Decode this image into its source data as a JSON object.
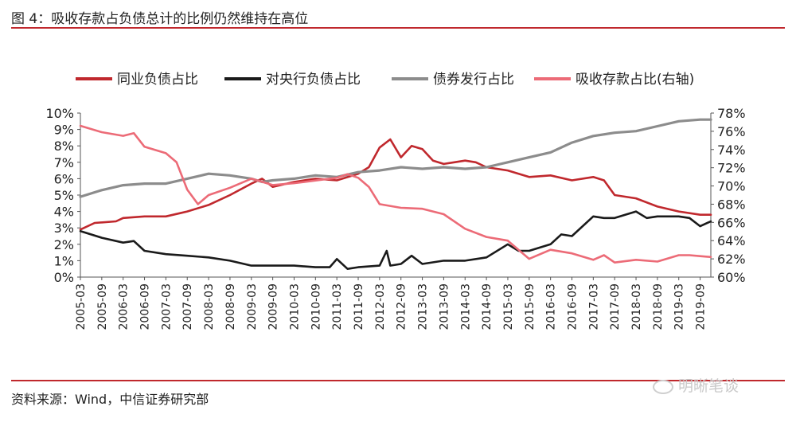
{
  "title": "图 4：吸收存款占负债总计的比例仍然维持在高位",
  "source": "资料来源：Wind，中信证券研究部",
  "watermark": "明晰笔谈",
  "chart_data": {
    "type": "line",
    "x_start": "2005-03",
    "x_end": "2019-12",
    "xtick_labels": [
      "2005-03",
      "2005-09",
      "2006-03",
      "2006-09",
      "2007-03",
      "2007-09",
      "2008-03",
      "2008-09",
      "2009-03",
      "2009-09",
      "2010-03",
      "2010-09",
      "2011-03",
      "2011-09",
      "2012-03",
      "2012-09",
      "2013-03",
      "2013-09",
      "2014-03",
      "2014-09",
      "2015-03",
      "2015-09",
      "2016-03",
      "2016-09",
      "2017-03",
      "2017-09",
      "2018-03",
      "2018-09",
      "2019-03",
      "2019-09"
    ],
    "y_left": {
      "lim": [
        0,
        10
      ],
      "ticks": [
        "0%",
        "1%",
        "2%",
        "3%",
        "4%",
        "5%",
        "6%",
        "7%",
        "8%",
        "9%",
        "10%"
      ]
    },
    "y_right": {
      "lim": [
        60,
        78
      ],
      "ticks": [
        "60%",
        "62%",
        "64%",
        "66%",
        "68%",
        "70%",
        "72%",
        "74%",
        "76%",
        "78%"
      ]
    },
    "series": [
      {
        "name": "同业负债占比",
        "axis": "left",
        "color": "#c0282d",
        "points": [
          [
            "2005-03",
            2.9
          ],
          [
            "2005-07",
            3.3
          ],
          [
            "2006-01",
            3.4
          ],
          [
            "2006-03",
            3.6
          ],
          [
            "2006-09",
            3.7
          ],
          [
            "2007-03",
            3.7
          ],
          [
            "2007-07",
            3.9
          ],
          [
            "2007-09",
            4.0
          ],
          [
            "2008-03",
            4.4
          ],
          [
            "2008-09",
            5.0
          ],
          [
            "2009-03",
            5.7
          ],
          [
            "2009-06",
            6.0
          ],
          [
            "2009-09",
            5.5
          ],
          [
            "2010-03",
            5.8
          ],
          [
            "2010-09",
            6.0
          ],
          [
            "2011-03",
            5.9
          ],
          [
            "2011-09",
            6.3
          ],
          [
            "2011-12",
            6.7
          ],
          [
            "2012-03",
            7.9
          ],
          [
            "2012-06",
            8.4
          ],
          [
            "2012-09",
            7.3
          ],
          [
            "2012-12",
            8.0
          ],
          [
            "2013-03",
            7.8
          ],
          [
            "2013-06",
            7.1
          ],
          [
            "2013-09",
            6.9
          ],
          [
            "2013-12",
            7.0
          ],
          [
            "2014-03",
            7.1
          ],
          [
            "2014-06",
            7.0
          ],
          [
            "2014-09",
            6.7
          ],
          [
            "2015-03",
            6.5
          ],
          [
            "2015-09",
            6.1
          ],
          [
            "2016-03",
            6.2
          ],
          [
            "2016-09",
            5.9
          ],
          [
            "2017-03",
            6.1
          ],
          [
            "2017-06",
            5.9
          ],
          [
            "2017-09",
            5.0
          ],
          [
            "2018-03",
            4.8
          ],
          [
            "2018-09",
            4.3
          ],
          [
            "2019-03",
            4.0
          ],
          [
            "2019-09",
            3.8
          ],
          [
            "2019-12",
            3.8
          ]
        ]
      },
      {
        "name": "对央行负债占比",
        "axis": "left",
        "color": "#1a1a1a",
        "points": [
          [
            "2005-03",
            2.8
          ],
          [
            "2005-09",
            2.4
          ],
          [
            "2006-03",
            2.1
          ],
          [
            "2006-06",
            2.2
          ],
          [
            "2006-09",
            1.6
          ],
          [
            "2007-03",
            1.4
          ],
          [
            "2007-09",
            1.3
          ],
          [
            "2008-03",
            1.2
          ],
          [
            "2008-09",
            1.0
          ],
          [
            "2009-03",
            0.7
          ],
          [
            "2009-09",
            0.7
          ],
          [
            "2010-03",
            0.7
          ],
          [
            "2010-09",
            0.6
          ],
          [
            "2011-01",
            0.6
          ],
          [
            "2011-03",
            1.1
          ],
          [
            "2011-06",
            0.5
          ],
          [
            "2011-09",
            0.6
          ],
          [
            "2012-03",
            0.7
          ],
          [
            "2012-05",
            1.6
          ],
          [
            "2012-06",
            0.7
          ],
          [
            "2012-09",
            0.8
          ],
          [
            "2012-12",
            1.3
          ],
          [
            "2013-03",
            0.8
          ],
          [
            "2013-09",
            1.0
          ],
          [
            "2014-03",
            1.0
          ],
          [
            "2014-09",
            1.2
          ],
          [
            "2015-03",
            2.0
          ],
          [
            "2015-06",
            1.6
          ],
          [
            "2015-09",
            1.6
          ],
          [
            "2016-03",
            2.0
          ],
          [
            "2016-06",
            2.6
          ],
          [
            "2016-09",
            2.5
          ],
          [
            "2017-03",
            3.7
          ],
          [
            "2017-06",
            3.6
          ],
          [
            "2017-09",
            3.6
          ],
          [
            "2018-03",
            4.0
          ],
          [
            "2018-06",
            3.6
          ],
          [
            "2018-09",
            3.7
          ],
          [
            "2019-03",
            3.7
          ],
          [
            "2019-06",
            3.6
          ],
          [
            "2019-09",
            3.1
          ],
          [
            "2019-12",
            3.4
          ]
        ]
      },
      {
        "name": "债券发行占比",
        "axis": "left",
        "color": "#8c8c8c",
        "points": [
          [
            "2005-03",
            4.9
          ],
          [
            "2005-09",
            5.3
          ],
          [
            "2006-03",
            5.6
          ],
          [
            "2006-09",
            5.7
          ],
          [
            "2007-03",
            5.7
          ],
          [
            "2007-09",
            6.0
          ],
          [
            "2008-03",
            6.3
          ],
          [
            "2008-09",
            6.2
          ],
          [
            "2009-03",
            6.0
          ],
          [
            "2009-06",
            5.8
          ],
          [
            "2009-09",
            5.9
          ],
          [
            "2010-03",
            6.0
          ],
          [
            "2010-09",
            6.2
          ],
          [
            "2011-03",
            6.1
          ],
          [
            "2011-09",
            6.4
          ],
          [
            "2012-03",
            6.5
          ],
          [
            "2012-09",
            6.7
          ],
          [
            "2013-03",
            6.6
          ],
          [
            "2013-09",
            6.7
          ],
          [
            "2014-03",
            6.6
          ],
          [
            "2014-09",
            6.7
          ],
          [
            "2015-03",
            7.0
          ],
          [
            "2015-09",
            7.3
          ],
          [
            "2016-03",
            7.6
          ],
          [
            "2016-09",
            8.2
          ],
          [
            "2017-03",
            8.6
          ],
          [
            "2017-09",
            8.8
          ],
          [
            "2018-03",
            8.9
          ],
          [
            "2018-09",
            9.2
          ],
          [
            "2019-03",
            9.5
          ],
          [
            "2019-09",
            9.6
          ],
          [
            "2019-12",
            9.6
          ]
        ]
      },
      {
        "name": "吸收存款占比(右轴)",
        "axis": "right",
        "color": "#ec6b77",
        "points": [
          [
            "2005-03",
            76.6
          ],
          [
            "2005-09",
            75.9
          ],
          [
            "2006-03",
            75.5
          ],
          [
            "2006-06",
            75.8
          ],
          [
            "2006-09",
            74.3
          ],
          [
            "2007-03",
            73.6
          ],
          [
            "2007-06",
            72.6
          ],
          [
            "2007-09",
            69.6
          ],
          [
            "2007-12",
            68.0
          ],
          [
            "2008-03",
            69.0
          ],
          [
            "2008-09",
            69.8
          ],
          [
            "2009-03",
            70.8
          ],
          [
            "2009-09",
            70.1
          ],
          [
            "2010-03",
            70.3
          ],
          [
            "2010-09",
            70.6
          ],
          [
            "2011-03",
            70.9
          ],
          [
            "2011-06",
            71.3
          ],
          [
            "2011-09",
            70.9
          ],
          [
            "2011-12",
            69.9
          ],
          [
            "2012-03",
            68.0
          ],
          [
            "2012-09",
            67.6
          ],
          [
            "2013-03",
            67.5
          ],
          [
            "2013-09",
            66.9
          ],
          [
            "2014-03",
            65.3
          ],
          [
            "2014-09",
            64.4
          ],
          [
            "2015-03",
            64.0
          ],
          [
            "2015-09",
            62.0
          ],
          [
            "2016-03",
            63.0
          ],
          [
            "2016-09",
            62.6
          ],
          [
            "2017-03",
            61.9
          ],
          [
            "2017-06",
            62.4
          ],
          [
            "2017-09",
            61.6
          ],
          [
            "2018-03",
            61.9
          ],
          [
            "2018-09",
            61.7
          ],
          [
            "2019-03",
            62.4
          ],
          [
            "2019-06",
            62.4
          ],
          [
            "2019-09",
            62.3
          ],
          [
            "2019-12",
            62.2
          ]
        ]
      }
    ]
  }
}
